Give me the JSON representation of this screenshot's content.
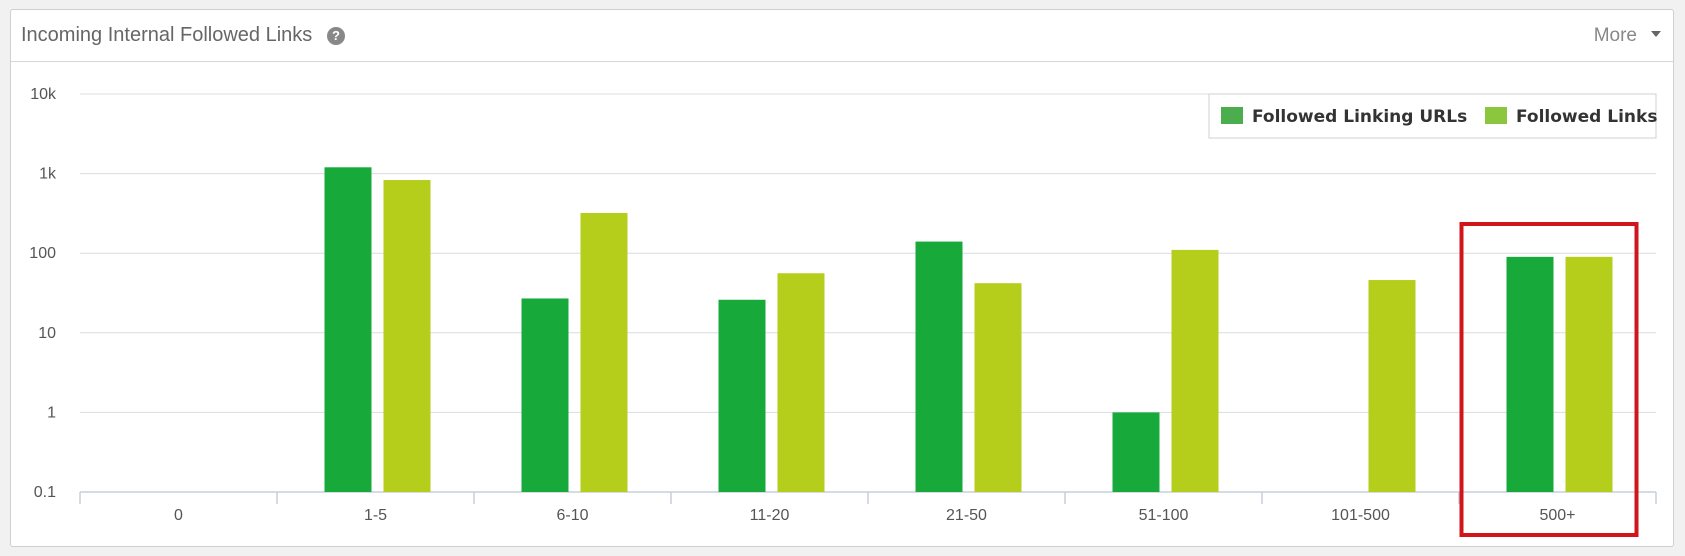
{
  "panel": {
    "title": "Incoming Internal Followed Links",
    "help_icon": "question-circle-icon",
    "more_label": "More",
    "more_icon": "caret-down-icon"
  },
  "chart_data": {
    "type": "bar",
    "scale": "log",
    "title": "",
    "xlabel": "",
    "ylabel": "",
    "ylim": [
      0.1,
      10000
    ],
    "y_ticks": [
      {
        "value": 0.1,
        "label": "0.1"
      },
      {
        "value": 1,
        "label": "1"
      },
      {
        "value": 10,
        "label": "10"
      },
      {
        "value": 100,
        "label": "100"
      },
      {
        "value": 1000,
        "label": "1k"
      },
      {
        "value": 10000,
        "label": "10k"
      }
    ],
    "grid": true,
    "legend_position": "top-right",
    "categories": [
      "0",
      "1-5",
      "6-10",
      "11-20",
      "21-50",
      "51-100",
      "101-500",
      "500+"
    ],
    "series": [
      {
        "name": "Followed Linking URLs",
        "color": "#18a93b",
        "legend_color": "#4cad4f",
        "values": [
          null,
          1200,
          27,
          26,
          140,
          1,
          null,
          90
        ]
      },
      {
        "name": "Followed Links",
        "color": "#b5cd1b",
        "legend_color": "#8cc63f",
        "values": [
          null,
          830,
          320,
          56,
          42,
          110,
          46,
          90
        ]
      }
    ],
    "highlight": {
      "category": "500+",
      "color": "#d0161b"
    }
  }
}
